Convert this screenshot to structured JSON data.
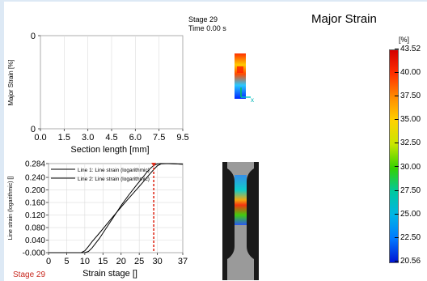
{
  "stage": {
    "label": "Stage 29",
    "time_label": "Time",
    "time_value": "0.00 s",
    "bottom_label": "Stage 29"
  },
  "view_title": "Major Strain",
  "legend": {
    "unit": "[%]",
    "ticks": [
      "43.52",
      "40.00",
      "37.50",
      "35.00",
      "32.50",
      "30.00",
      "27.50",
      "25.00",
      "22.50",
      "20.56"
    ],
    "gradient_colors": [
      "#d40000",
      "#ff3000",
      "#ff8c00",
      "#ffd200",
      "#c8e600",
      "#34d100",
      "#00c8a0",
      "#00b4e6",
      "#0078ff",
      "#0014d2"
    ]
  },
  "thumb_axis": "x",
  "chart_data": [
    {
      "type": "line",
      "ylabel": "Major Strain [%]",
      "xlabel": "Section length [mm]",
      "x_ticks": [
        "0.0",
        "1.5",
        "3.0",
        "4.5",
        "6.0",
        "7.5",
        "9.5"
      ],
      "y_ticks": [
        "0",
        "0"
      ],
      "series": []
    },
    {
      "type": "line",
      "ylabel": "Line strain (logarithmic) []",
      "xlabel": "Strain stage []",
      "x_ticks": [
        "0",
        "5",
        "10",
        "15",
        "20",
        "25",
        "30",
        "37"
      ],
      "y_ticks": [
        "-0.000",
        "0.040",
        "0.080",
        "0.120",
        "0.160",
        "0.200",
        "0.240",
        "0.284"
      ],
      "xlim": [
        0,
        37
      ],
      "ylim": [
        0,
        0.284
      ],
      "current_stage": 29,
      "legend_position": "top-left",
      "series": [
        {
          "name": "Line 1: Line strain (logarithmic)",
          "color": "#000000",
          "x": [
            0,
            5,
            9,
            10,
            11,
            12,
            14,
            16,
            18,
            20,
            22,
            24,
            26,
            27,
            28,
            29,
            30,
            31,
            33,
            35,
            37
          ],
          "y": [
            0,
            0,
            0,
            0.006,
            0.02,
            0.035,
            0.062,
            0.09,
            0.118,
            0.145,
            0.172,
            0.198,
            0.224,
            0.238,
            0.252,
            0.265,
            0.277,
            0.283,
            0.284,
            0.283,
            0.282
          ]
        },
        {
          "name": "Line 2: Line strain (logarithmic)",
          "color": "#000000",
          "x": [
            0,
            5,
            10,
            11,
            12,
            14,
            16,
            18,
            20,
            22,
            24,
            26,
            27,
            28,
            29,
            30,
            31,
            33,
            35,
            37
          ],
          "y": [
            0,
            0,
            0,
            0.004,
            0.015,
            0.045,
            0.08,
            0.115,
            0.15,
            0.182,
            0.212,
            0.24,
            0.255,
            0.268,
            0.278,
            0.283,
            0.284,
            0.284,
            0.283,
            0.282
          ]
        }
      ]
    }
  ]
}
